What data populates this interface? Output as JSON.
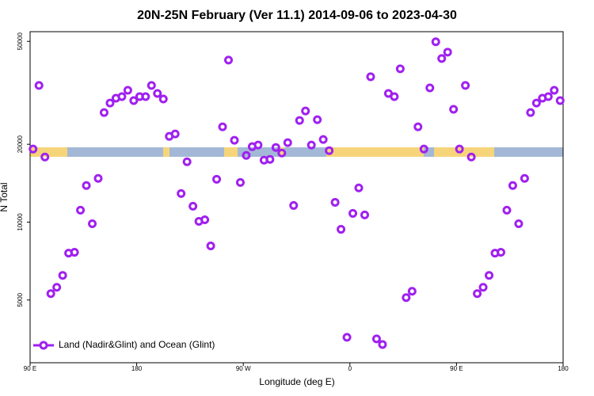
{
  "chart_data": {
    "type": "scatter",
    "title": "20N-25N February (Ver 11.1)   2014-09-06 to 2023-04-30",
    "xlabel": "Longitude (deg E)",
    "ylabel": "N Total",
    "xlim": [
      90,
      540
    ],
    "xticks": [
      {
        "value": 90,
        "label": "90 E"
      },
      180,
      {
        "value": 270,
        "label": "90 W"
      },
      {
        "value": 360,
        "label": "0"
      },
      {
        "value": 450,
        "label": "90 E"
      },
      {
        "value": 540,
        "label": "180"
      }
    ],
    "ylim": [
      2860,
      54500
    ],
    "yticks": [
      5000,
      10000,
      20000,
      50000
    ],
    "log_y": true,
    "legend": "lower left",
    "series": [
      {
        "name": "Land (Nadir&Glint) and Ocean (Glint)",
        "color": "#a020f0",
        "x": [
          92.5,
          97.5,
          102.5,
          107.5,
          112.5,
          117.5,
          122.5,
          127.5,
          132.5,
          137.5,
          142.5,
          147.5,
          152.5,
          157.5,
          162.5,
          167.5,
          172.5,
          177.5,
          182.5,
          187.5,
          192.5,
          197.5,
          202.5,
          207.5,
          212.5,
          217.5,
          222.5,
          227.5,
          232.5,
          237.5,
          242.5,
          247.5,
          252.5,
          257.5,
          262.5,
          267.5,
          272.5,
          277.5,
          282.5,
          287.5,
          292.5,
          297.5,
          302.5,
          307.5,
          312.5,
          317.5,
          322.5,
          327.5,
          332.5,
          337.5,
          342.5,
          347.5,
          352.5,
          357.5,
          362.5,
          367.5,
          372.5,
          377.5,
          382.5,
          387.5,
          392.5,
          397.5,
          402.5,
          407.5,
          412.5,
          417.5,
          422.5,
          427.5,
          432.5,
          437.5,
          442.5,
          447.5,
          452.5,
          457.5,
          462.5,
          467.5,
          472.5,
          477.5,
          482.5,
          487.5,
          492.5,
          497.5,
          502.5,
          507.5,
          512.5,
          517.5,
          522.5,
          527.5,
          532.5,
          537.5
        ],
        "values": [
          19170,
          33760,
          17860,
          5290,
          5600,
          6225,
          7590,
          7645,
          11120,
          13850,
          9860,
          14760,
          26530,
          28880,
          30140,
          30570,
          32340,
          29510,
          30570,
          30570,
          33760,
          31450,
          29920,
          21460,
          21930,
          12900,
          17120,
          11520,
          10070,
          10210,
          8090,
          14650,
          23370,
          42320,
          20720,
          14240,
          18110,
          19580,
          19860,
          17360,
          17480,
          19440,
          18500,
          20290,
          11600,
          24730,
          26910,
          19860,
          24900,
          20870,
          18900,
          11930,
          9380,
          3587,
          10810,
          13560,
          10660,
          36480,
          3536,
          3365,
          31450,
          30570,
          39150,
          5107,
          5405,
          23370,
          19170,
          33040,
          49800,
          42930,
          45430,
          27300,
          19170,
          33760,
          17860,
          5290,
          5600,
          6225,
          7590,
          7645,
          11120,
          13850,
          9860,
          14760,
          26530,
          28880,
          30140,
          30570,
          32340,
          29510
        ]
      }
    ]
  }
}
